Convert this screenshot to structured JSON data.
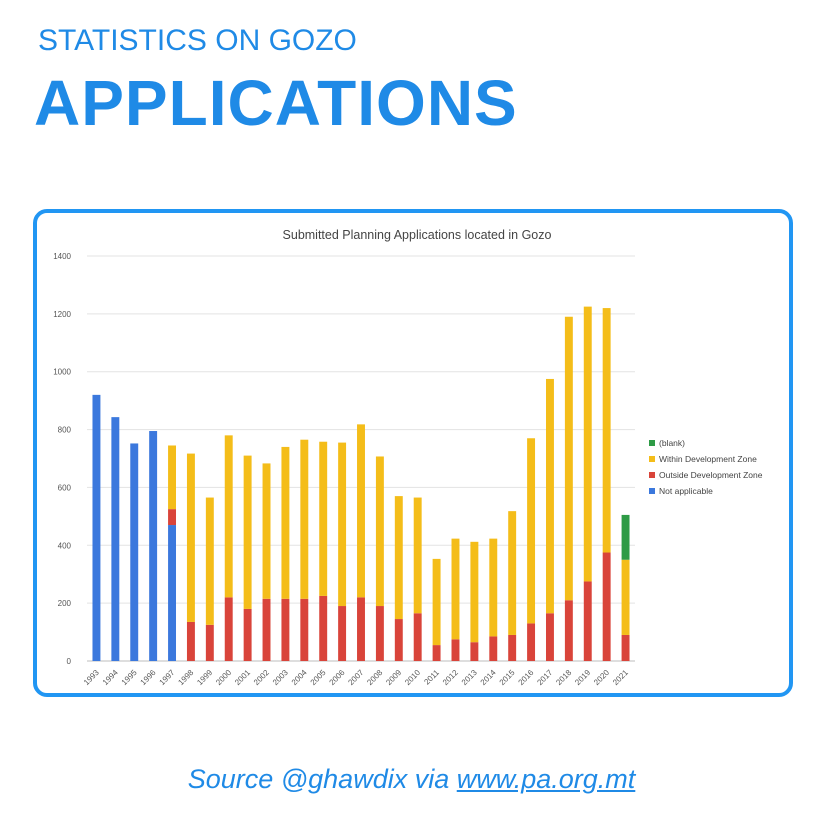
{
  "header": {
    "kicker": "STATISTICS ON GOZO",
    "title": "APPLICATIONS"
  },
  "source": {
    "prefix": "Source @ghawdix via ",
    "link": "www.pa.org.mt"
  },
  "colors": {
    "accent": "#1f8ae6",
    "blank": "#2e9b46",
    "within": "#f4bd19",
    "outside": "#d9443a",
    "not_applicable": "#3b78dd"
  },
  "chart_data": {
    "type": "bar",
    "stacked": true,
    "title": "Submitted Planning Applications located in Gozo",
    "xlabel": "",
    "ylabel": "",
    "ylim": [
      0,
      1400
    ],
    "yticks": [
      0,
      200,
      400,
      600,
      800,
      1000,
      1200,
      1400
    ],
    "grid": true,
    "legend_position": "right",
    "categories": [
      "1993",
      "1994",
      "1995",
      "1996",
      "1997",
      "1998",
      "1999",
      "2000",
      "2001",
      "2002",
      "2003",
      "2004",
      "2005",
      "2006",
      "2007",
      "2008",
      "2009",
      "2010",
      "2011",
      "2012",
      "2013",
      "2014",
      "2015",
      "2016",
      "2017",
      "2018",
      "2019",
      "2020",
      "2021"
    ],
    "series": [
      {
        "name": "Not applicable",
        "key": "not_applicable",
        "values": [
          920,
          843,
          752,
          795,
          470,
          0,
          0,
          0,
          0,
          0,
          0,
          0,
          0,
          0,
          0,
          0,
          0,
          0,
          0,
          0,
          0,
          0,
          0,
          0,
          0,
          0,
          0,
          0,
          0
        ]
      },
      {
        "name": "Outside Development Zone",
        "key": "outside",
        "values": [
          0,
          0,
          0,
          0,
          55,
          135,
          125,
          220,
          180,
          215,
          215,
          215,
          225,
          190,
          220,
          190,
          145,
          165,
          55,
          75,
          65,
          85,
          90,
          130,
          165,
          210,
          275,
          375,
          90
        ]
      },
      {
        "name": "Within Development Zone",
        "key": "within",
        "values": [
          0,
          0,
          0,
          0,
          220,
          582,
          440,
          560,
          530,
          468,
          525,
          550,
          533,
          565,
          598,
          517,
          425,
          400,
          298,
          348,
          347,
          338,
          428,
          640,
          810,
          980,
          950,
          845,
          260
        ]
      },
      {
        "name": "(blank)",
        "key": "blank",
        "values": [
          0,
          0,
          0,
          0,
          0,
          0,
          0,
          0,
          0,
          0,
          0,
          0,
          0,
          0,
          0,
          0,
          0,
          0,
          0,
          0,
          0,
          0,
          0,
          0,
          0,
          0,
          0,
          0,
          155
        ]
      }
    ],
    "legend_order": [
      "blank",
      "within",
      "outside",
      "not_applicable"
    ]
  }
}
